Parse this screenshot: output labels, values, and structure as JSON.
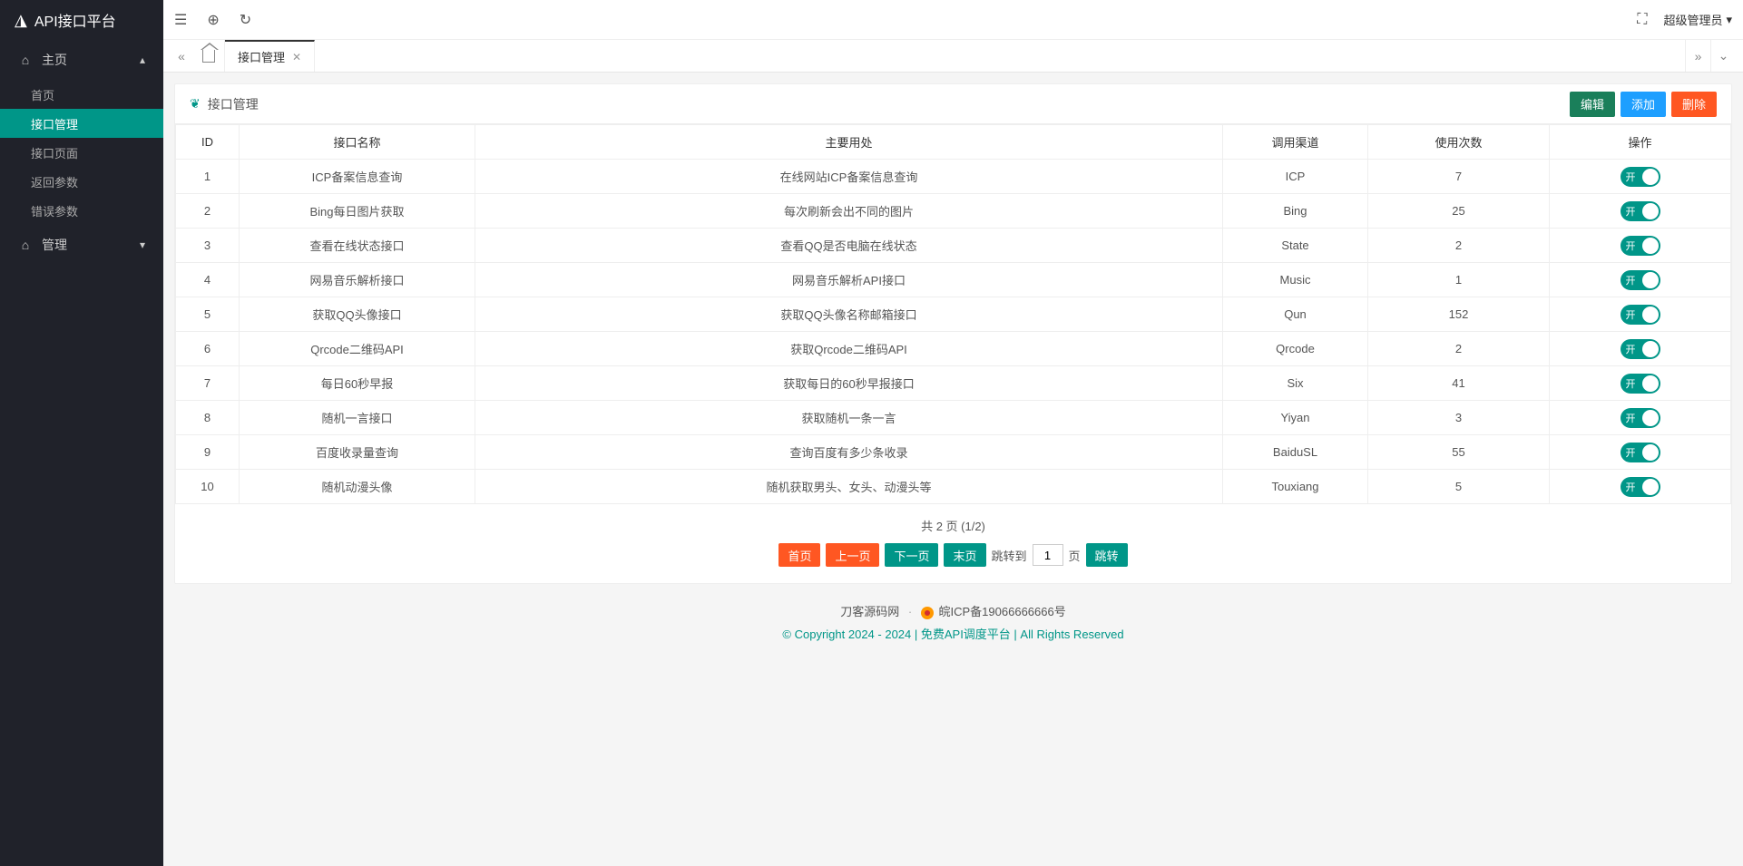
{
  "brand": "API接口平台",
  "topbar": {
    "user": "超级管理员"
  },
  "sidebar": {
    "group1": {
      "title": "主页"
    },
    "items": [
      {
        "label": "首页"
      },
      {
        "label": "接口管理"
      },
      {
        "label": "接口页面"
      },
      {
        "label": "返回参数"
      },
      {
        "label": "错误参数"
      }
    ],
    "group2": {
      "title": "管理"
    }
  },
  "tabs": {
    "active": {
      "label": "接口管理"
    }
  },
  "card": {
    "title": "接口管理",
    "buttons": {
      "edit": "编辑",
      "add": "添加",
      "del": "删除"
    }
  },
  "table": {
    "columns": {
      "id": "ID",
      "name": "接口名称",
      "usage": "主要用处",
      "channel": "调用渠道",
      "count": "使用次数",
      "op": "操作"
    },
    "switch_on": "开",
    "rows": [
      {
        "id": "1",
        "name": "ICP备案信息查询",
        "usage": "在线网站ICP备案信息查询",
        "channel": "ICP",
        "count": "7"
      },
      {
        "id": "2",
        "name": "Bing每日图片获取",
        "usage": "每次刷新会出不同的图片",
        "channel": "Bing",
        "count": "25"
      },
      {
        "id": "3",
        "name": "查看在线状态接口",
        "usage": "查看QQ是否电脑在线状态",
        "channel": "State",
        "count": "2"
      },
      {
        "id": "4",
        "name": "网易音乐解析接口",
        "usage": "网易音乐解析API接口",
        "channel": "Music",
        "count": "1"
      },
      {
        "id": "5",
        "name": "获取QQ头像接口",
        "usage": "获取QQ头像名称邮箱接口",
        "channel": "Qun",
        "count": "152"
      },
      {
        "id": "6",
        "name": "Qrcode二维码API",
        "usage": "获取Qrcode二维码API",
        "channel": "Qrcode",
        "count": "2"
      },
      {
        "id": "7",
        "name": "每日60秒早报",
        "usage": "获取每日的60秒早报接口",
        "channel": "Six",
        "count": "41"
      },
      {
        "id": "8",
        "name": "随机一言接口",
        "usage": "获取随机一条一言",
        "channel": "Yiyan",
        "count": "3"
      },
      {
        "id": "9",
        "name": "百度收录量查询",
        "usage": "查询百度有多少条收录",
        "channel": "BaiduSL",
        "count": "55"
      },
      {
        "id": "10",
        "name": "随机动漫头像",
        "usage": "随机获取男头、女头、动漫头等",
        "channel": "Touxiang",
        "count": "5"
      }
    ]
  },
  "pager": {
    "info": "共 2 页  (1/2)",
    "first": "首页",
    "prev": "上一页",
    "next": "下一页",
    "last": "末页",
    "jump_to": "跳转到",
    "page_unit": "页",
    "jump": "跳转",
    "current": "1"
  },
  "footer": {
    "site": "刀客源码网",
    "icp": "皖ICP备19066666666号",
    "copyright": "© Copyright 2024 - 2024 | 免费API调度平台 | All Rights Reserved"
  }
}
